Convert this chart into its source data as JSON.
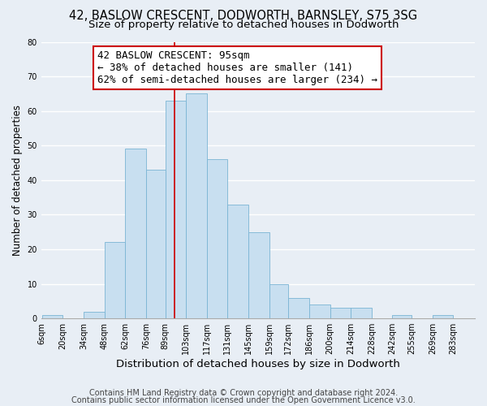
{
  "title1": "42, BASLOW CRESCENT, DODWORTH, BARNSLEY, S75 3SG",
  "title2": "Size of property relative to detached houses in Dodworth",
  "xlabel": "Distribution of detached houses by size in Dodworth",
  "ylabel": "Number of detached properties",
  "bin_edges": [
    6,
    20,
    34,
    48,
    62,
    76,
    89,
    103,
    117,
    131,
    145,
    159,
    172,
    186,
    200,
    214,
    228,
    242,
    255,
    269,
    283,
    297
  ],
  "bar_heights": [
    1,
    0,
    2,
    22,
    49,
    43,
    63,
    65,
    46,
    33,
    25,
    10,
    6,
    4,
    3,
    3,
    0,
    1,
    0,
    1,
    0
  ],
  "bar_color": "#c8dff0",
  "bar_edgecolor": "#7ab4d4",
  "property_size": 95,
  "red_line_color": "#cc0000",
  "annotation_box_edgecolor": "#cc0000",
  "annotation_line1": "42 BASLOW CRESCENT: 95sqm",
  "annotation_line2": "← 38% of detached houses are smaller (141)",
  "annotation_line3": "62% of semi-detached houses are larger (234) →",
  "ylim": [
    0,
    80
  ],
  "yticks": [
    0,
    10,
    20,
    30,
    40,
    50,
    60,
    70,
    80
  ],
  "xtick_labels": [
    "6sqm",
    "20sqm",
    "34sqm",
    "48sqm",
    "62sqm",
    "76sqm",
    "89sqm",
    "103sqm",
    "117sqm",
    "131sqm",
    "145sqm",
    "159sqm",
    "172sqm",
    "186sqm",
    "200sqm",
    "214sqm",
    "228sqm",
    "242sqm",
    "255sqm",
    "269sqm",
    "283sqm"
  ],
  "footer1": "Contains HM Land Registry data © Crown copyright and database right 2024.",
  "footer2": "Contains public sector information licensed under the Open Government Licence v3.0.",
  "background_color": "#e8eef5",
  "plot_bg_color": "#e8eef5",
  "grid_color": "#ffffff",
  "title1_fontsize": 10.5,
  "title2_fontsize": 9.5,
  "xlabel_fontsize": 9.5,
  "ylabel_fontsize": 8.5,
  "tick_fontsize": 7,
  "footer_fontsize": 7,
  "annotation_fontsize": 9
}
